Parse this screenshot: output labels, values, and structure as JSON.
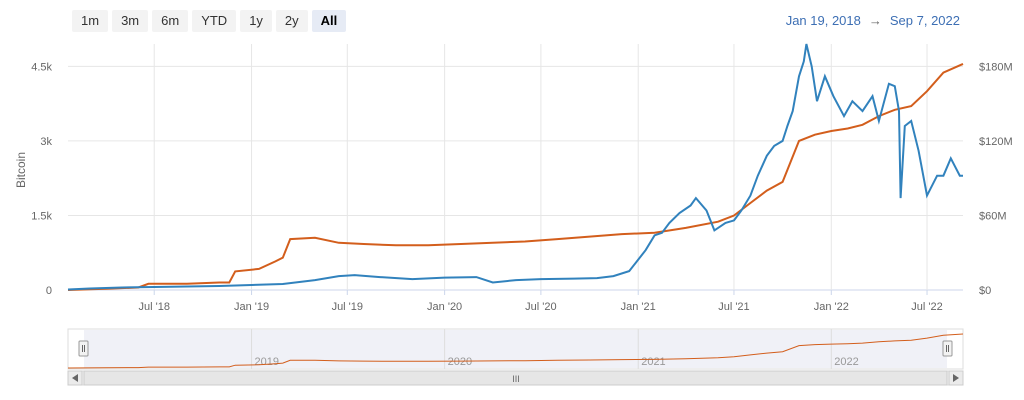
{
  "range_selector": {
    "buttons": [
      {
        "label": "1m",
        "active": false
      },
      {
        "label": "3m",
        "active": false
      },
      {
        "label": "6m",
        "active": false
      },
      {
        "label": "YTD",
        "active": false
      },
      {
        "label": "1y",
        "active": false
      },
      {
        "label": "2y",
        "active": false
      },
      {
        "label": "All",
        "active": true
      }
    ],
    "from": "Jan 19, 2018",
    "arrow": "→",
    "to": "Sep 7, 2022"
  },
  "colors": {
    "btc_series": "#3182bd",
    "usd_series": "#d35e1c",
    "grid": "#e6e6e6",
    "navigator_mask": "#e3e6f0"
  },
  "navigator": {
    "labels": [
      "2019",
      "2020",
      "2021",
      "2022"
    ],
    "scroll_grip": "III"
  },
  "chart_data": {
    "type": "line",
    "title": "",
    "x_range": [
      "2018-01-19",
      "2022-09-07"
    ],
    "x_tick_labels": [
      "Jul '18",
      "Jan '19",
      "Jul '19",
      "Jan '20",
      "Jul '20",
      "Jan '21",
      "Jul '21",
      "Jan '22",
      "Jul '22"
    ],
    "y_left": {
      "label": "Bitcoin",
      "ticks": [
        "0",
        "1.5k",
        "3k",
        "4.5k"
      ],
      "tick_values": [
        0,
        1500,
        3000,
        4500
      ],
      "range": [
        0,
        4950
      ]
    },
    "y_right": {
      "label": "",
      "ticks": [
        "$0",
        "$60M",
        "$120M",
        "$180M"
      ],
      "tick_values": [
        0,
        60,
        120,
        180
      ],
      "range": [
        0,
        198
      ],
      "unit": "M USD"
    },
    "grid": true,
    "legend": "none",
    "series": [
      {
        "axis": "left",
        "x": [
          "2018-01-19",
          "2018-03-01",
          "2018-05-01",
          "2018-07-01",
          "2018-09-01",
          "2018-11-01",
          "2019-01-01",
          "2019-03-01",
          "2019-05-01",
          "2019-06-15",
          "2019-07-15",
          "2019-09-01",
          "2019-11-01",
          "2020-01-01",
          "2020-03-01",
          "2020-04-01",
          "2020-05-15",
          "2020-07-01",
          "2020-09-01",
          "2020-10-15",
          "2020-11-15",
          "2020-12-15",
          "2021-01-15",
          "2021-02-01",
          "2021-02-15",
          "2021-03-01",
          "2021-03-20",
          "2021-04-10",
          "2021-04-20",
          "2021-05-10",
          "2021-05-25",
          "2021-06-15",
          "2021-07-01",
          "2021-07-15",
          "2021-08-01",
          "2021-08-15",
          "2021-09-01",
          "2021-09-15",
          "2021-10-01",
          "2021-10-10",
          "2021-10-20",
          "2021-11-01",
          "2021-11-10",
          "2021-11-15",
          "2021-11-25",
          "2021-12-05",
          "2021-12-20",
          "2022-01-05",
          "2022-01-25",
          "2022-02-10",
          "2022-03-01",
          "2022-03-20",
          "2022-04-01",
          "2022-04-20",
          "2022-05-01",
          "2022-05-09",
          "2022-05-12",
          "2022-05-20",
          "2022-06-01",
          "2022-06-15",
          "2022-07-01",
          "2022-07-20",
          "2022-08-01",
          "2022-08-15",
          "2022-09-01",
          "2022-09-07"
        ],
        "y": [
          10,
          30,
          50,
          60,
          70,
          80,
          100,
          120,
          200,
          280,
          300,
          260,
          220,
          250,
          260,
          150,
          200,
          220,
          230,
          240,
          280,
          380,
          800,
          1100,
          1150,
          1350,
          1550,
          1700,
          1850,
          1600,
          1200,
          1350,
          1400,
          1600,
          1900,
          2300,
          2700,
          2900,
          3000,
          3300,
          3600,
          4300,
          4600,
          4950,
          4500,
          3800,
          4300,
          3900,
          3500,
          3800,
          3600,
          3900,
          3400,
          4150,
          4100,
          3600,
          1850,
          3300,
          3400,
          2800,
          1900,
          2300,
          2300,
          2650,
          2300,
          2300
        ]
      },
      {
        "axis": "right",
        "x": [
          "2018-01-19",
          "2018-04-01",
          "2018-06-01",
          "2018-06-20",
          "2018-09-01",
          "2018-11-01",
          "2018-11-20",
          "2018-12-01",
          "2019-01-15",
          "2019-02-15",
          "2019-03-01",
          "2019-03-15",
          "2019-05-01",
          "2019-06-15",
          "2019-08-01",
          "2019-10-01",
          "2019-12-01",
          "2020-02-01",
          "2020-04-01",
          "2020-06-01",
          "2020-08-01",
          "2020-10-01",
          "2020-12-01",
          "2021-02-01",
          "2021-04-01",
          "2021-06-01",
          "2021-07-01",
          "2021-08-01",
          "2021-09-01",
          "2021-10-01",
          "2021-11-01",
          "2021-12-01",
          "2022-01-01",
          "2022-02-01",
          "2022-03-01",
          "2022-04-01",
          "2022-05-01",
          "2022-06-01",
          "2022-07-01",
          "2022-08-01",
          "2022-09-07"
        ],
        "y": [
          0,
          1,
          2,
          5,
          5,
          6,
          6,
          15,
          17,
          23,
          26,
          41,
          42,
          38,
          37,
          36,
          36,
          37,
          38,
          39,
          41,
          43,
          45,
          46,
          50,
          55,
          60,
          70,
          80,
          87,
          120,
          125,
          128,
          130,
          133,
          140,
          145,
          148,
          160,
          175,
          182
        ]
      }
    ]
  }
}
